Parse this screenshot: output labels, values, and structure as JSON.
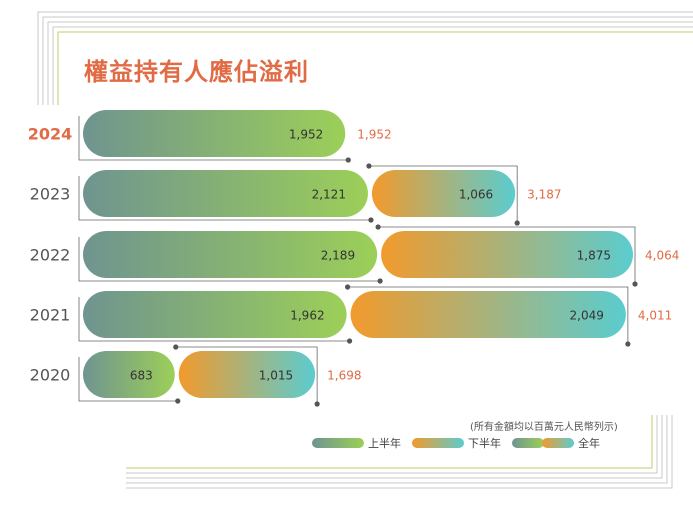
{
  "title": "權益持有人應佔溢利",
  "note": "(所有金額均以百萬元人民幣列示)",
  "legend": {
    "h1": "上半年",
    "h2": "下半年",
    "full": "全年"
  },
  "colors": {
    "accent": "#e06b45",
    "h1_start": "#6f9490",
    "h1_end": "#9ccf58",
    "h2_start": "#f29a2c",
    "h2_end": "#5bcccf",
    "bracket": "#666666"
  },
  "chart_data": {
    "type": "bar",
    "stacked": true,
    "orientation": "horizontal",
    "categories": [
      "2024",
      "2023",
      "2022",
      "2021",
      "2020"
    ],
    "highlight": "2024",
    "series": [
      {
        "name": "上半年",
        "values": [
          1952,
          2121,
          2189,
          1962,
          683
        ]
      },
      {
        "name": "下半年",
        "values": [
          null,
          1066,
          1875,
          2049,
          1015
        ]
      }
    ],
    "totals": {
      "name": "全年",
      "values": [
        1952,
        3187,
        4064,
        4011,
        1698
      ]
    },
    "value_labels": {
      "h1": [
        "1,952",
        "2,121",
        "2,189",
        "1,962",
        "683"
      ],
      "h2": [
        "",
        "1,066",
        "1,875",
        "2,049",
        "1,015"
      ],
      "total": [
        "1,952",
        "3,187",
        "4,064",
        "4,011",
        "1,698"
      ]
    },
    "xlim": [
      0,
      4064
    ],
    "grid": false,
    "legend_position": "bottom-right"
  }
}
